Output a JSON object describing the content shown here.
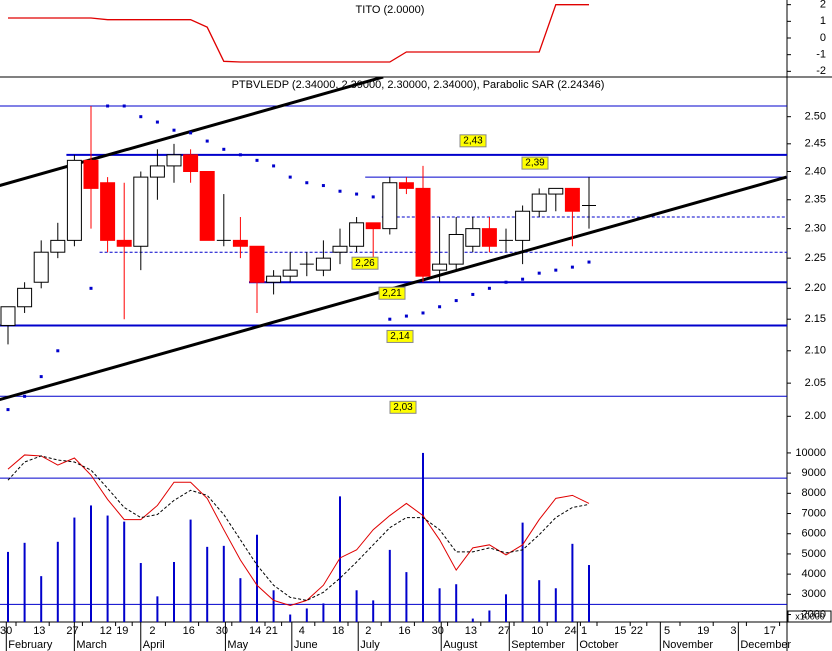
{
  "chart_data": [
    {
      "type": "line",
      "title": "TITO (2.0000)",
      "color": "#e00000",
      "values": [
        1.2,
        1.2,
        1.2,
        1.2,
        1.2,
        1.2,
        1.1,
        1.1,
        1.1,
        1.1,
        1.1,
        1.1,
        0.65,
        -1.4,
        -1.44,
        -1.44,
        -1.44,
        -1.44,
        -1.44,
        -1.44,
        -1.44,
        -1.44,
        -1.44,
        -1.44,
        -0.84,
        -0.84,
        -0.84,
        -0.84,
        -0.84,
        -0.84,
        -0.84,
        -0.84,
        -0.84,
        2.0,
        2.0,
        2.0
      ],
      "ylim": [
        -2.34,
        2.28
      ],
      "yticks": [
        2,
        1,
        0,
        -1,
        -2
      ]
    },
    {
      "type": "candlestick",
      "title": "PTBVLEDP (2.34000, 2.39000, 2.30000, 2.34000), Parabolic SAR (2.24346)",
      "open": [
        2.14,
        2.17,
        2.21,
        2.26,
        2.28,
        2.42,
        2.38,
        2.28,
        2.27,
        2.39,
        2.41,
        2.43,
        2.4,
        2.28,
        2.28,
        2.27,
        2.21,
        2.22,
        2.24,
        2.23,
        2.26,
        2.27,
        2.31,
        2.3,
        2.38,
        2.37,
        2.23,
        2.24,
        2.27,
        2.3,
        2.28,
        2.28,
        2.33,
        2.36,
        2.37,
        2.34
      ],
      "high": [
        2.17,
        2.21,
        2.28,
        2.31,
        2.43,
        2.52,
        2.39,
        2.38,
        2.4,
        2.44,
        2.45,
        2.44,
        2.4,
        2.36,
        2.32,
        2.27,
        2.23,
        2.26,
        2.26,
        2.28,
        2.3,
        2.32,
        2.31,
        2.39,
        2.39,
        2.41,
        2.32,
        2.32,
        2.32,
        2.32,
        2.3,
        2.34,
        2.37,
        2.37,
        2.37,
        2.39
      ],
      "low": [
        2.11,
        2.16,
        2.2,
        2.25,
        2.27,
        2.3,
        2.26,
        2.15,
        2.23,
        2.35,
        2.38,
        2.38,
        2.28,
        2.27,
        2.25,
        2.16,
        2.19,
        2.21,
        2.22,
        2.22,
        2.24,
        2.26,
        2.25,
        2.29,
        2.36,
        2.21,
        2.21,
        2.23,
        2.26,
        2.26,
        2.26,
        2.24,
        2.32,
        2.33,
        2.27,
        2.3
      ],
      "close": [
        2.17,
        2.2,
        2.26,
        2.28,
        2.42,
        2.37,
        2.28,
        2.27,
        2.39,
        2.41,
        2.43,
        2.4,
        2.28,
        2.28,
        2.27,
        2.21,
        2.22,
        2.23,
        2.24,
        2.25,
        2.27,
        2.31,
        2.3,
        2.38,
        2.37,
        2.22,
        2.24,
        2.29,
        2.3,
        2.27,
        2.28,
        2.33,
        2.36,
        2.37,
        2.33,
        2.34
      ],
      "sar": [
        2.01,
        2.03,
        2.06,
        2.1,
        null,
        2.2,
        2.52,
        2.52,
        2.5,
        2.49,
        2.475,
        2.47,
        2.455,
        2.44,
        2.43,
        2.42,
        2.41,
        2.39,
        2.38,
        2.375,
        2.365,
        2.36,
        2.355,
        2.15,
        2.155,
        2.16,
        2.17,
        2.18,
        2.19,
        2.2,
        2.21,
        2.215,
        2.225,
        2.23,
        2.235,
        2.24346
      ],
      "up_color": "#ffffff",
      "down_color": "#ff0000",
      "sar_color": "#0000cc",
      "log_scale": true,
      "ylim": [
        1.965,
        2.575
      ],
      "yticks": [
        {
          "value": 2.5,
          "label": "2.50"
        },
        {
          "value": 2.45,
          "label": "2.45"
        },
        {
          "value": 2.4,
          "label": "2.40"
        },
        {
          "value": 2.35,
          "label": "2.35"
        },
        {
          "value": 2.3,
          "label": "2.30"
        },
        {
          "value": 2.25,
          "label": "2.25"
        },
        {
          "value": 2.2,
          "label": "2.20"
        },
        {
          "value": 2.15,
          "label": "2.15"
        },
        {
          "value": 2.1,
          "label": "2.10"
        },
        {
          "value": 2.05,
          "label": "2.05"
        },
        {
          "value": 2.0,
          "label": "2.00"
        }
      ],
      "levels": [
        {
          "value": 2.52,
          "start": 0
        },
        {
          "value": 2.43,
          "label": "2,43",
          "start": 4,
          "bold": true
        },
        {
          "value": 2.39,
          "label": "2,39",
          "start": 22
        },
        {
          "value": 2.32,
          "start": 23,
          "dashed": true
        },
        {
          "value": 2.26,
          "label": "2,26",
          "start": 6,
          "dashed": true
        },
        {
          "value": 2.21,
          "label": "2,21",
          "start": 15,
          "bold": true
        },
        {
          "value": 2.14,
          "label": "2,14",
          "start": 0,
          "bold": true
        },
        {
          "value": 2.03,
          "label": "2,03",
          "start": 0
        }
      ],
      "trendlines": [
        {
          "x": [
            -0.5,
            22.6
          ],
          "y": [
            2.375,
            2.575
          ]
        },
        {
          "x": [
            -0.5,
            46.9
          ],
          "y": [
            2.025,
            2.39
          ]
        }
      ]
    },
    {
      "type": "bar",
      "unit_label": "x10000",
      "color": "#0000cc",
      "values": [
        5100,
        5550,
        3900,
        5600,
        6800,
        7400,
        6900,
        6600,
        4550,
        2900,
        4600,
        6700,
        5350,
        5400,
        3800,
        5950,
        3200,
        2000,
        2300,
        2550,
        7850,
        3200,
        2700,
        5200,
        4100,
        10000,
        3300,
        3500,
        1800,
        2200,
        3000,
        6550,
        3700,
        3300,
        5500,
        4450
      ],
      "series": [
        {
          "color": "#e00000",
          "values": [
            9200,
            9900,
            9850,
            9400,
            9750,
            8900,
            7700,
            6700,
            6700,
            7400,
            8550,
            8550,
            7750,
            6200,
            4700,
            3450,
            2700,
            2450,
            2700,
            3450,
            4800,
            5200,
            6200,
            6900,
            7500,
            6900,
            5700,
            4200,
            5300,
            5450,
            4950,
            5450,
            6700,
            7750,
            7900,
            7500
          ]
        },
        {
          "color": "#000000",
          "dashed": true,
          "values": [
            8650,
            9550,
            9850,
            9650,
            9550,
            9150,
            8250,
            7300,
            6800,
            6950,
            7650,
            8150,
            7900,
            6950,
            5700,
            4450,
            3450,
            2850,
            2700,
            3100,
            3800,
            4600,
            5450,
            6300,
            6800,
            6800,
            6200,
            5100,
            5100,
            5300,
            5050,
            5200,
            5950,
            6800,
            7300,
            7450
          ]
        }
      ],
      "levels": [
        8750,
        2500
      ],
      "ylim": [
        1630,
        10640
      ],
      "yticks": [
        10000,
        9000,
        8000,
        7000,
        6000,
        5000,
        4000,
        3000,
        2000
      ],
      "xticks": [
        {
          "value": 0,
          "label": "30"
        },
        {
          "value": 2,
          "label": "13"
        },
        {
          "value": 4,
          "label": "27"
        },
        {
          "value": 6,
          "label": "12"
        },
        {
          "value": 7,
          "label": "19"
        },
        {
          "value": 9,
          "label": "2"
        },
        {
          "value": 11,
          "label": "16"
        },
        {
          "value": 13,
          "label": "30"
        },
        {
          "value": 15,
          "label": "14"
        },
        {
          "value": 16,
          "label": "21"
        },
        {
          "value": 18,
          "label": "4"
        },
        {
          "value": 20,
          "label": "18"
        },
        {
          "value": 22,
          "label": "2"
        },
        {
          "value": 24,
          "label": "16"
        },
        {
          "value": 26,
          "label": "30"
        },
        {
          "value": 28,
          "label": "13"
        },
        {
          "value": 30,
          "label": "27"
        },
        {
          "value": 32,
          "label": "10"
        },
        {
          "value": 34,
          "label": "24"
        },
        {
          "value": 35,
          "label": "1"
        },
        {
          "value": 37,
          "label": "15"
        },
        {
          "value": 38,
          "label": "22"
        },
        {
          "value": 40,
          "label": "5"
        },
        {
          "value": 42,
          "label": "19"
        },
        {
          "value": 44,
          "label": "3"
        },
        {
          "value": 46,
          "label": "17"
        }
      ],
      "months": [
        {
          "value": 0.5,
          "label": "February"
        },
        {
          "value": 4.6,
          "label": "March"
        },
        {
          "value": 8.6,
          "label": "April"
        },
        {
          "value": 13.7,
          "label": "May"
        },
        {
          "value": 17.7,
          "label": "June"
        },
        {
          "value": 21.7,
          "label": "July"
        },
        {
          "value": 26.7,
          "label": "August"
        },
        {
          "value": 30.8,
          "label": "September"
        },
        {
          "value": 34.9,
          "label": "October"
        },
        {
          "value": 39.9,
          "label": "November"
        },
        {
          "value": 44.6,
          "label": "December"
        }
      ]
    }
  ]
}
